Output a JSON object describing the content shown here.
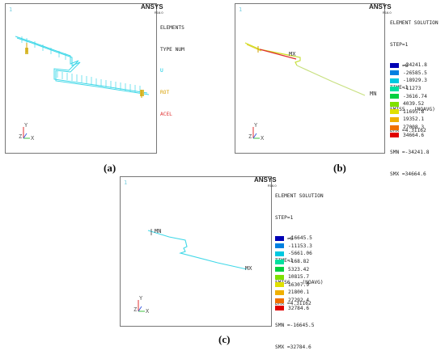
{
  "panels": {
    "a": {
      "caption": "(a)",
      "index_label": "1",
      "logo": "ANSYS",
      "logo_sub": "R16.0",
      "info_lines": [
        "ELEMENTS",
        "TYPE NUM"
      ],
      "legend_labels": [
        {
          "text": "U",
          "color": "#00c8e0"
        },
        {
          "text": "ROT",
          "color": "#d8a000"
        },
        {
          "text": "ACEL",
          "color": "#e03030"
        }
      ],
      "axis": {
        "y": "Y",
        "z": "Z",
        "x": "X"
      }
    },
    "b": {
      "caption": "(b)",
      "index_label": "1",
      "logo": "ANSYS",
      "logo_sub": "R16.0",
      "info_lines": [
        "ELEMENT SOLUTION",
        "STEP=1",
        "SUB =6",
        "TIME=1",
        "SMIS5   (NOAVG)",
        "DMX =4.31162",
        "SMN =-34241.8",
        "SMX =34664.6"
      ],
      "contour_levels": [
        "-34241.8",
        "-26585.5",
        "-18929.3",
        "-11273",
        "-3616.74",
        "4039.52",
        "11695.8",
        "19352.1",
        "27008.3",
        "34664.6"
      ],
      "mx_label": "MX",
      "mn_label": "MN",
      "axis": {
        "y": "Y",
        "z": "Z",
        "x": "X"
      }
    },
    "c": {
      "caption": "(c)",
      "index_label": "1",
      "logo": "ANSYS",
      "logo_sub": "R16.0",
      "info_lines": [
        "ELEMENT SOLUTION",
        "STEP=1",
        "SUB =6",
        "TIME=1",
        "SMIS6    (NOAVG)",
        "DMX =4.31162",
        "SMN =-16645.5",
        "SMX =32784.6"
      ],
      "contour_levels": [
        "-16645.5",
        "-11153.3",
        "-5661.06",
        "-168.82",
        "5323.42",
        "10815.7",
        "16307.9",
        "21800.1",
        "27292.4",
        "32784.6"
      ],
      "mn_label": "MN",
      "mx_label": "MX",
      "axis": {
        "y": "Y",
        "z": "Z",
        "x": "X"
      }
    }
  },
  "contour_colors": [
    "#0000b4",
    "#0080e0",
    "#00c8e0",
    "#00e0a0",
    "#00d040",
    "#80e000",
    "#e0e000",
    "#f0b000",
    "#f07000",
    "#e00000"
  ],
  "pipe_color_a": "#40d8e8",
  "pipe_color_c": "#40d8e8"
}
